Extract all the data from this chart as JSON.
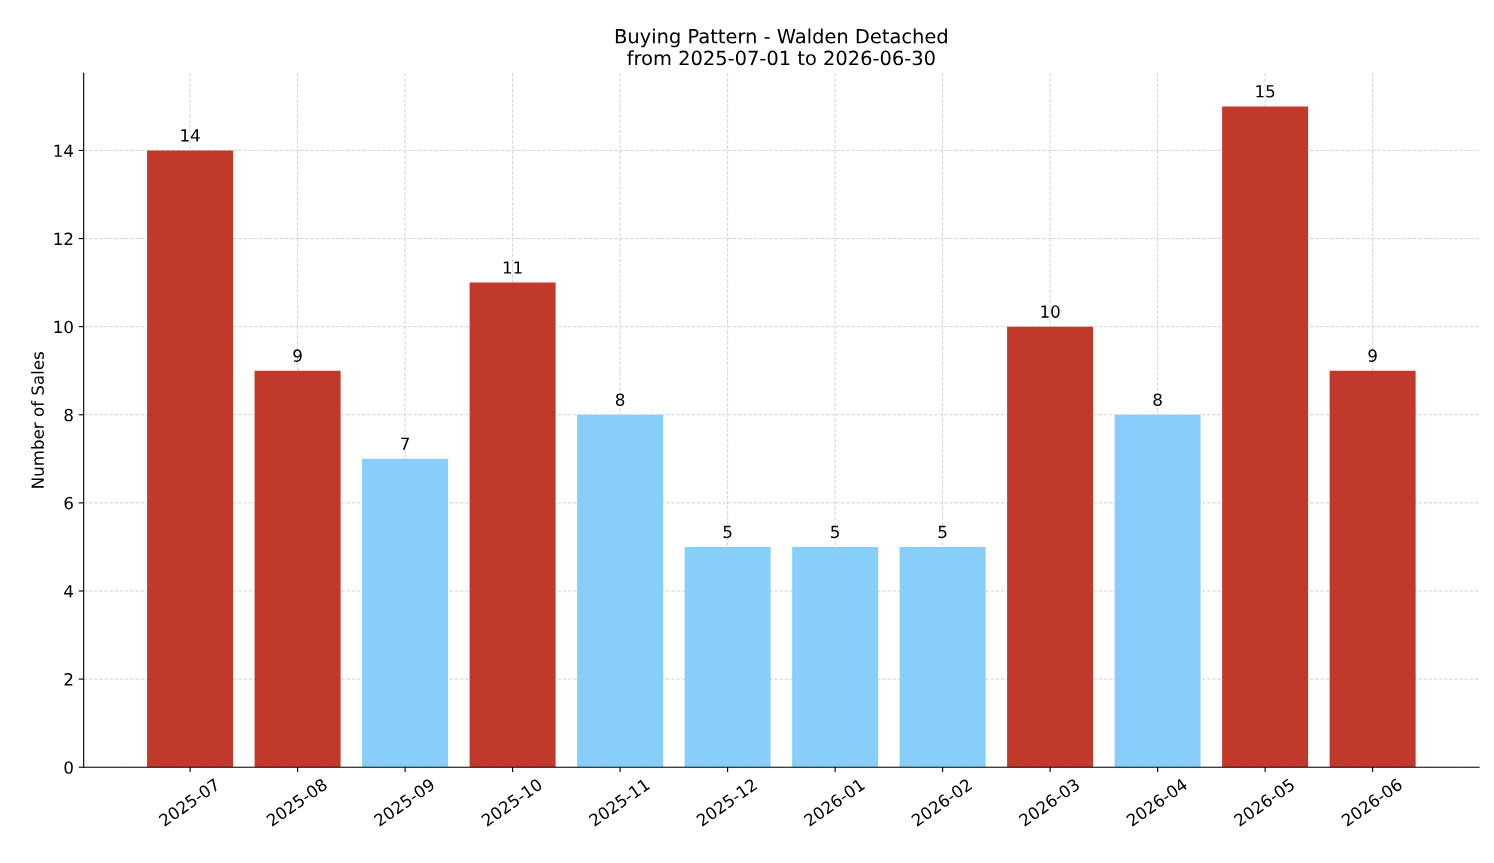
{
  "chart_data": {
    "type": "bar",
    "title": "Buying Pattern - Walden Detached\nfrom 2025-07-01 to 2026-06-30",
    "ylabel": "Number of Sales",
    "categories": [
      "2025-07",
      "2025-08",
      "2025-09",
      "2025-10",
      "2025-11",
      "2025-12",
      "2026-01",
      "2026-02",
      "2026-03",
      "2026-04",
      "2026-05",
      "2026-06"
    ],
    "values": [
      14,
      9,
      7,
      11,
      8,
      5,
      5,
      5,
      10,
      8,
      15,
      9
    ],
    "colors": [
      "#c0392b",
      "#c0392b",
      "#87cefa",
      "#c0392b",
      "#87cefa",
      "#87cefa",
      "#87cefa",
      "#87cefa",
      "#c0392b",
      "#87cefa",
      "#c0392b",
      "#c0392b"
    ],
    "ylim": [
      0,
      15.75
    ],
    "yticks": [
      0,
      2,
      4,
      6,
      8,
      10,
      12,
      14
    ],
    "grid": true,
    "data_labels": true
  }
}
